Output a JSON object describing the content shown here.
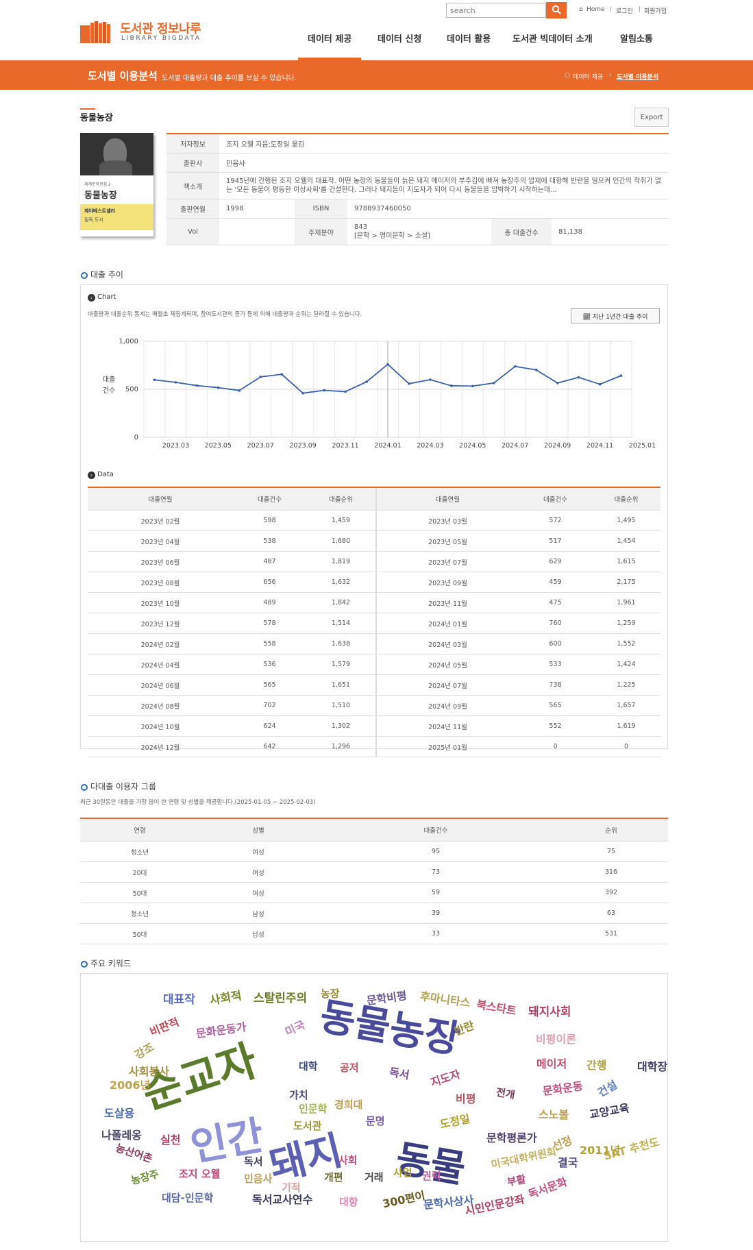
{
  "header": {
    "logo_ko": "도서관 정보나루",
    "logo_en": "LIBRARY BIGDATA",
    "search_placeholder": "search",
    "util": [
      "Home",
      "로그인",
      "회원가입"
    ],
    "nav": [
      "데이터 제공",
      "데이터 신청",
      "데이터 활용",
      "도서관 빅데이터 소개",
      "알림소통"
    ],
    "accent_color": "#e8692a"
  },
  "banner": {
    "title": "도서별 이용분석",
    "subtitle": "도서별 대출량과 대출 추이를 보실 수 있습니다.",
    "crumb_1": "데이터 제공",
    "crumb_2": "도서별 이용분석"
  },
  "book": {
    "title": "동물농장",
    "export_label": "Export",
    "labels": {
      "author": "저자정보",
      "publisher": "출판사",
      "intro": "책소개",
      "pub_year": "출판연월",
      "isbn": "ISBN",
      "vol": "Vol",
      "subject": "주제분야",
      "total_loans": "총 대출건수"
    },
    "author": "조지 오웰 지음;도정일 옮김",
    "publisher": "민음사",
    "intro": "1945년에 간행된 조지 오웰의 대표작. 어떤 농장의 동물들이 늙은 돼지 메이저의 부추김에 빠져 농장주의 압제에 대항해 반란을 일으켜 인간의 착취가 없는 '모든 동물이 평등한 이상사회'를 건설한다. 그러나 돼지들이 지도자가 되어 다시 동물들을 압박하기 시작하는데...",
    "pub_year": "1998",
    "isbn": "9788937460050",
    "vol": "",
    "subject_code": "843",
    "subject_path": "[문학 > 영미문학 > 소설]",
    "total_loans": "81,138",
    "cover": {
      "title": "동물농장",
      "series": "세계문학전집 2",
      "band": "제야베스트셀러",
      "band2": "필독 도서"
    }
  },
  "loan_trend": {
    "section_title": "대출 추이",
    "chart_label": "Chart",
    "note": "대출량과 대출순위 통계는 매월초 재집계되며, 참여도서관의 증가 등에 의해 대출량과 순위는 달라질 수 있습니다.",
    "trend_button": "지난 1년간 대출 추이",
    "data_label": "Data",
    "table_headers": [
      "대출연월",
      "대출건수",
      "대출순위"
    ]
  },
  "chart_data": {
    "type": "line",
    "title": "",
    "xlabel": "",
    "ylabel": "대출\n건수",
    "ylabel_lines": [
      "대출",
      "건수"
    ],
    "ylim": [
      0,
      1000
    ],
    "yticks": [
      "0",
      "500",
      "1,000"
    ],
    "xticks": [
      "2023.03",
      "2023.05",
      "2023.07",
      "2023.09",
      "2023.11",
      "2024.01",
      "2024.03",
      "2024.05",
      "2024.07",
      "2024.09",
      "2024.11",
      "2025.01"
    ],
    "grid": true,
    "x": [
      "2023.02",
      "2023.03",
      "2023.04",
      "2023.05",
      "2023.06",
      "2023.07",
      "2023.08",
      "2023.09",
      "2023.10",
      "2023.11",
      "2023.12",
      "2024.01",
      "2024.02",
      "2024.03",
      "2024.04",
      "2024.05",
      "2024.06",
      "2024.07",
      "2024.08",
      "2024.09",
      "2024.10",
      "2024.11",
      "2024.12"
    ],
    "values": [
      598,
      572,
      538,
      517,
      487,
      629,
      656,
      459,
      489,
      475,
      578,
      760,
      558,
      600,
      536,
      533,
      565,
      738,
      702,
      565,
      624,
      552,
      642
    ],
    "color": "#3a5fa8"
  },
  "loan_table_left": [
    [
      "2023년 02월",
      "598",
      "1,459"
    ],
    [
      "2023년 04월",
      "538",
      "1,680"
    ],
    [
      "2023년 06월",
      "487",
      "1,819"
    ],
    [
      "2023년 08월",
      "656",
      "1,632"
    ],
    [
      "2023년 10월",
      "489",
      "1,842"
    ],
    [
      "2023년 12월",
      "578",
      "1,514"
    ],
    [
      "2024년 02월",
      "558",
      "1,638"
    ],
    [
      "2024년 04월",
      "536",
      "1,579"
    ],
    [
      "2024년 06월",
      "565",
      "1,651"
    ],
    [
      "2024년 08월",
      "702",
      "1,510"
    ],
    [
      "2024년 10월",
      "624",
      "1,302"
    ],
    [
      "2024년 12월",
      "642",
      "1,296"
    ]
  ],
  "loan_table_right": [
    [
      "2023년 03월",
      "572",
      "1,495"
    ],
    [
      "2023년 05월",
      "517",
      "1,454"
    ],
    [
      "2023년 07월",
      "629",
      "1,615"
    ],
    [
      "2023년 09월",
      "459",
      "2,175"
    ],
    [
      "2023년 11월",
      "475",
      "1,961"
    ],
    [
      "2024년 01월",
      "760",
      "1,259"
    ],
    [
      "2024년 03월",
      "600",
      "1,552"
    ],
    [
      "2024년 05월",
      "533",
      "1,424"
    ],
    [
      "2024년 07월",
      "738",
      "1,225"
    ],
    [
      "2024년 09월",
      "565",
      "1,657"
    ],
    [
      "2024년 11월",
      "552",
      "1,619"
    ],
    [
      "2025년 01월",
      "0",
      "0"
    ]
  ],
  "user_group": {
    "section_title": "다대출 이용자 그룹",
    "note": "최근 30일동안 대출을 가장 많이 한 연령 및 성별을 제공합니다.(2025-01-05 ~ 2025-02-03)",
    "headers": [
      "연령",
      "성별",
      "대출건수",
      "순위"
    ],
    "rows": [
      [
        "청소년",
        "여성",
        "95",
        "75"
      ],
      [
        "20대",
        "여성",
        "73",
        "316"
      ],
      [
        "50대",
        "여성",
        "59",
        "392"
      ],
      [
        "청소년",
        "남성",
        "39",
        "63"
      ],
      [
        "50대",
        "남성",
        "33",
        "531"
      ]
    ]
  },
  "keywords": {
    "section_title": "주요 키워드",
    "words": [
      {
        "t": "순교자",
        "c": "#5c7a2c"
      },
      {
        "t": "동물농장",
        "c": "#4a4a9a"
      },
      {
        "t": "인간",
        "c": "#8f93d6"
      },
      {
        "t": "돼지",
        "c": "#5d5fb3"
      },
      {
        "t": "동물",
        "c": "#3a3d7e"
      },
      {
        "t": "대표작",
        "c": "#5a6cc0"
      },
      {
        "t": "사회적",
        "c": "#7b8a2a"
      },
      {
        "t": "스탈린주의",
        "c": "#6b7a20"
      },
      {
        "t": "농장",
        "c": "#9a8a30"
      },
      {
        "t": "문학비평",
        "c": "#6a5a9a"
      },
      {
        "t": "후마니타스",
        "c": "#b0a050"
      },
      {
        "t": "북스타트",
        "c": "#c0506a"
      },
      {
        "t": "돼지사회",
        "c": "#b04060"
      },
      {
        "t": "비판적",
        "c": "#c04a5a"
      },
      {
        "t": "문화운동가",
        "c": "#b060a0"
      },
      {
        "t": "미국",
        "c": "#c080c0"
      },
      {
        "t": "반란",
        "c": "#9a8a30"
      },
      {
        "t": "비평이론",
        "c": "#e0a0b0"
      },
      {
        "t": "강조",
        "c": "#b0a050"
      },
      {
        "t": "사회봉사",
        "c": "#a09040"
      },
      {
        "t": "2006년",
        "c": "#c0a050"
      },
      {
        "t": "대학",
        "c": "#3a4a7a"
      },
      {
        "t": "공저",
        "c": "#c05060"
      },
      {
        "t": "독서",
        "c": "#7a4a9a"
      },
      {
        "t": "지도자",
        "c": "#b05070"
      },
      {
        "t": "메이저",
        "c": "#c04a6a"
      },
      {
        "t": "간행",
        "c": "#b0a040"
      },
      {
        "t": "대학장",
        "c": "#3a3a6a"
      },
      {
        "t": "가치",
        "c": "#4a4a6a"
      },
      {
        "t": "인문학",
        "c": "#a0b050"
      },
      {
        "t": "경희대",
        "c": "#c0a050"
      },
      {
        "t": "비평",
        "c": "#b05060"
      },
      {
        "t": "전개",
        "c": "#7a3a5a"
      },
      {
        "t": "문화운동",
        "c": "#c05080"
      },
      {
        "t": "건설",
        "c": "#6080c0"
      },
      {
        "t": "도살용",
        "c": "#4a6aaa"
      },
      {
        "t": "도서관",
        "c": "#9a9a30"
      },
      {
        "t": "문명",
        "c": "#7a5aaa"
      },
      {
        "t": "도정일",
        "c": "#b0a030"
      },
      {
        "t": "스노볼",
        "c": "#c0a050"
      },
      {
        "t": "교양교육",
        "c": "#3a3a5a"
      },
      {
        "t": "나폴레옹",
        "c": "#4a4a6a"
      },
      {
        "t": "실천",
        "c": "#b04060"
      },
      {
        "t": "문학평론가",
        "c": "#4a3a6a"
      },
      {
        "t": "선정",
        "c": "#c0a050"
      },
      {
        "t": "SAT 추천도",
        "c": "#c0b050"
      },
      {
        "t": "농산어촌",
        "c": "#8a3a5a"
      },
      {
        "t": "독서",
        "c": "#3a3a5a"
      },
      {
        "t": "사회",
        "c": "#c05080"
      },
      {
        "t": "미국대학위원회",
        "c": "#c0b060"
      },
      {
        "t": "결국",
        "c": "#4a4a8a"
      },
      {
        "t": "2011년",
        "c": "#b0a040"
      },
      {
        "t": "농장주",
        "c": "#6a8a30"
      },
      {
        "t": "조지 오웰",
        "c": "#c04a7a"
      },
      {
        "t": "민음사",
        "c": "#c0a060"
      },
      {
        "t": "기적",
        "c": "#e0a0a0"
      },
      {
        "t": "개편",
        "c": "#6a6a30"
      },
      {
        "t": "거래",
        "c": "#4a4a4a"
      },
      {
        "t": "사업",
        "c": "#b0a030"
      },
      {
        "t": "권력",
        "c": "#c060a0"
      },
      {
        "t": "부활",
        "c": "#b04a7a"
      },
      {
        "t": "독서문화",
        "c": "#c05080"
      },
      {
        "t": "대담-인문학",
        "c": "#5a6aaa"
      },
      {
        "t": "독서교사연수",
        "c": "#3a3a5a"
      },
      {
        "t": "대항",
        "c": "#e080b0"
      },
      {
        "t": "300편이",
        "c": "#6a5a20"
      },
      {
        "t": "문학사상사",
        "c": "#4a6ab0"
      },
      {
        "t": "시민인문강좌",
        "c": "#b04060"
      }
    ]
  }
}
